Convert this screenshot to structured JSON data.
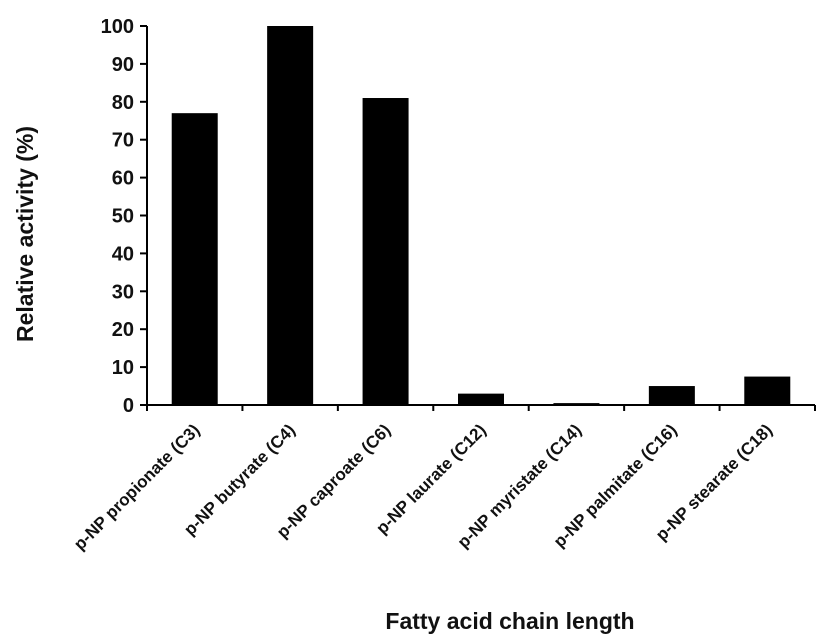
{
  "chart_data": {
    "type": "bar",
    "categories": [
      "p-NP propionate (C3)",
      "p-NP butyrate (C4)",
      "p-NP caproate (C6)",
      "p-NP laurate (C12)",
      "p-NP myristate (C14)",
      "p-NP palmitate (C16)",
      "p-NP stearate (C18)"
    ],
    "values": [
      77,
      100,
      81,
      3,
      0.5,
      5,
      7.5
    ],
    "xlabel": "Fatty acid chain length",
    "ylabel": "Relative activity (%)",
    "ylim": [
      0,
      100
    ],
    "yticks": [
      "0",
      "10",
      "20",
      "30",
      "40",
      "50",
      "60",
      "70",
      "80",
      "90",
      "100"
    ],
    "grid": false,
    "legend": "none",
    "bar_color": "#000000"
  }
}
